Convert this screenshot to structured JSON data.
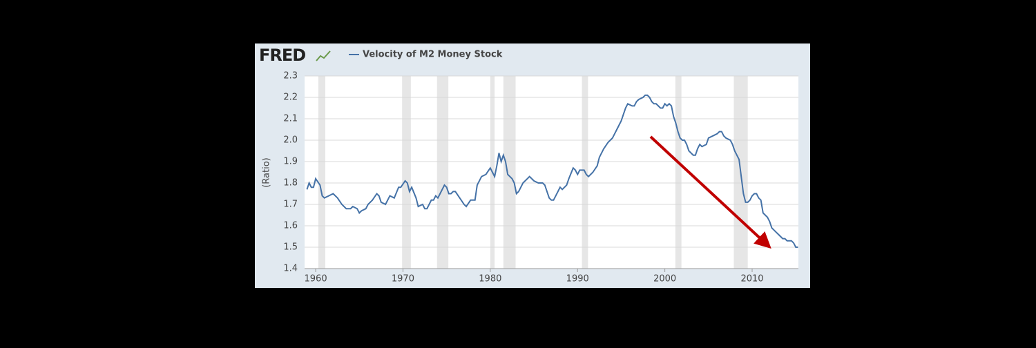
{
  "logo": "FRED",
  "chart_data": {
    "type": "line",
    "ylabel": "(Ratio)",
    "series": [
      {
        "name": "Velocity of M2 Money Stock",
        "color": "#4572a7",
        "x": [
          1959.0,
          1959.25,
          1959.5,
          1959.75,
          1960.0,
          1960.5,
          1960.75,
          1961.0,
          1961.5,
          1962.0,
          1962.5,
          1963.0,
          1963.5,
          1964.0,
          1964.25,
          1964.75,
          1965.0,
          1965.25,
          1965.75,
          1966.0,
          1966.5,
          1967.0,
          1967.25,
          1967.5,
          1968.0,
          1968.5,
          1969.0,
          1969.5,
          1969.75,
          1970.25,
          1970.5,
          1970.75,
          1971.0,
          1971.5,
          1971.75,
          1972.25,
          1972.5,
          1972.75,
          1973.25,
          1973.5,
          1973.75,
          1974.0,
          1974.5,
          1974.75,
          1975.0,
          1975.25,
          1975.5,
          1975.75,
          1976.0,
          1976.5,
          1977.0,
          1977.25,
          1977.75,
          1978.25,
          1978.5,
          1978.75,
          1979.0,
          1979.5,
          1980.0,
          1980.25,
          1980.5,
          1980.75,
          1981.0,
          1981.25,
          1981.5,
          1981.75,
          1982.0,
          1982.5,
          1982.75,
          1983.0,
          1983.25,
          1983.75,
          1984.25,
          1984.5,
          1985.0,
          1985.5,
          1986.0,
          1986.25,
          1986.5,
          1986.75,
          1987.0,
          1987.25,
          1987.75,
          1988.0,
          1988.25,
          1988.75,
          1989.0,
          1989.5,
          1989.75,
          1990.0,
          1990.25,
          1990.75,
          1991.0,
          1991.25,
          1991.75,
          1992.25,
          1992.5,
          1993.0,
          1993.5,
          1994.0,
          1994.5,
          1995.0,
          1995.5,
          1995.75,
          1996.25,
          1996.5,
          1996.75,
          1997.0,
          1997.5,
          1997.75,
          1998.0,
          1998.25,
          1998.5,
          1998.75,
          1999.0,
          1999.25,
          1999.5,
          1999.75,
          2000.0,
          2000.25,
          2000.5,
          2000.75,
          2001.0,
          2001.25,
          2001.5,
          2001.75,
          2002.0,
          2002.25,
          2002.5,
          2002.75,
          2003.0,
          2003.25,
          2003.5,
          2003.75,
          2004.0,
          2004.25,
          2004.75,
          2005.0,
          2005.5,
          2006.0,
          2006.25,
          2006.5,
          2006.75,
          2007.0,
          2007.5,
          2007.75,
          2008.0,
          2008.25,
          2008.5,
          2008.75,
          2009.0,
          2009.25,
          2009.5,
          2009.75,
          2010.0,
          2010.25,
          2010.5,
          2010.75,
          2011.0,
          2011.25,
          2011.5,
          2011.75,
          2012.0,
          2012.25,
          2012.5,
          2012.75,
          2013.0,
          2013.25,
          2013.5,
          2013.75,
          2014.0,
          2014.5,
          2014.75,
          2015.0,
          2015.25
        ],
        "values": [
          1.77,
          1.8,
          1.78,
          1.78,
          1.82,
          1.79,
          1.74,
          1.73,
          1.74,
          1.75,
          1.73,
          1.7,
          1.68,
          1.68,
          1.69,
          1.68,
          1.66,
          1.67,
          1.68,
          1.7,
          1.72,
          1.75,
          1.74,
          1.71,
          1.7,
          1.74,
          1.73,
          1.78,
          1.78,
          1.81,
          1.8,
          1.76,
          1.78,
          1.73,
          1.69,
          1.7,
          1.68,
          1.68,
          1.72,
          1.72,
          1.74,
          1.73,
          1.77,
          1.79,
          1.78,
          1.75,
          1.75,
          1.76,
          1.76,
          1.73,
          1.7,
          1.69,
          1.72,
          1.72,
          1.79,
          1.81,
          1.83,
          1.84,
          1.87,
          1.85,
          1.83,
          1.88,
          1.94,
          1.9,
          1.93,
          1.9,
          1.84,
          1.82,
          1.8,
          1.75,
          1.76,
          1.8,
          1.82,
          1.83,
          1.81,
          1.8,
          1.8,
          1.79,
          1.76,
          1.73,
          1.72,
          1.72,
          1.76,
          1.78,
          1.77,
          1.79,
          1.82,
          1.87,
          1.86,
          1.84,
          1.86,
          1.86,
          1.84,
          1.83,
          1.85,
          1.88,
          1.92,
          1.96,
          1.99,
          2.01,
          2.05,
          2.09,
          2.15,
          2.17,
          2.16,
          2.16,
          2.18,
          2.19,
          2.2,
          2.21,
          2.21,
          2.2,
          2.18,
          2.17,
          2.17,
          2.16,
          2.15,
          2.15,
          2.17,
          2.16,
          2.17,
          2.16,
          2.11,
          2.08,
          2.04,
          2.01,
          2.0,
          2.0,
          1.98,
          1.95,
          1.94,
          1.93,
          1.93,
          1.96,
          1.98,
          1.97,
          1.98,
          2.01,
          2.02,
          2.03,
          2.04,
          2.04,
          2.02,
          2.01,
          2.0,
          1.98,
          1.95,
          1.93,
          1.91,
          1.83,
          1.75,
          1.71,
          1.71,
          1.72,
          1.74,
          1.75,
          1.75,
          1.73,
          1.72,
          1.66,
          1.65,
          1.64,
          1.62,
          1.59,
          1.58,
          1.57,
          1.56,
          1.55,
          1.54,
          1.54,
          1.53,
          1.53,
          1.52,
          1.5,
          1.5
        ]
      }
    ],
    "recessions": [
      [
        1960.3,
        1961.1
      ],
      [
        1969.9,
        1970.9
      ],
      [
        1973.9,
        1975.2
      ],
      [
        1980.0,
        1980.5
      ],
      [
        1981.5,
        1982.9
      ],
      [
        1990.5,
        1991.2
      ],
      [
        2001.2,
        2001.9
      ],
      [
        2007.9,
        2009.5
      ]
    ],
    "xlim": [
      1958.73,
      2015.3
    ],
    "xticks": [
      1960,
      1970,
      1980,
      1990,
      2000,
      2010
    ],
    "ylim": [
      1.4,
      2.3
    ],
    "yticks": [
      1.4,
      1.5,
      1.6,
      1.7,
      1.8,
      1.9,
      {
        "value": 2,
        "label": "2.0"
      },
      2.1,
      2.2,
      2.3
    ],
    "grid": true
  }
}
